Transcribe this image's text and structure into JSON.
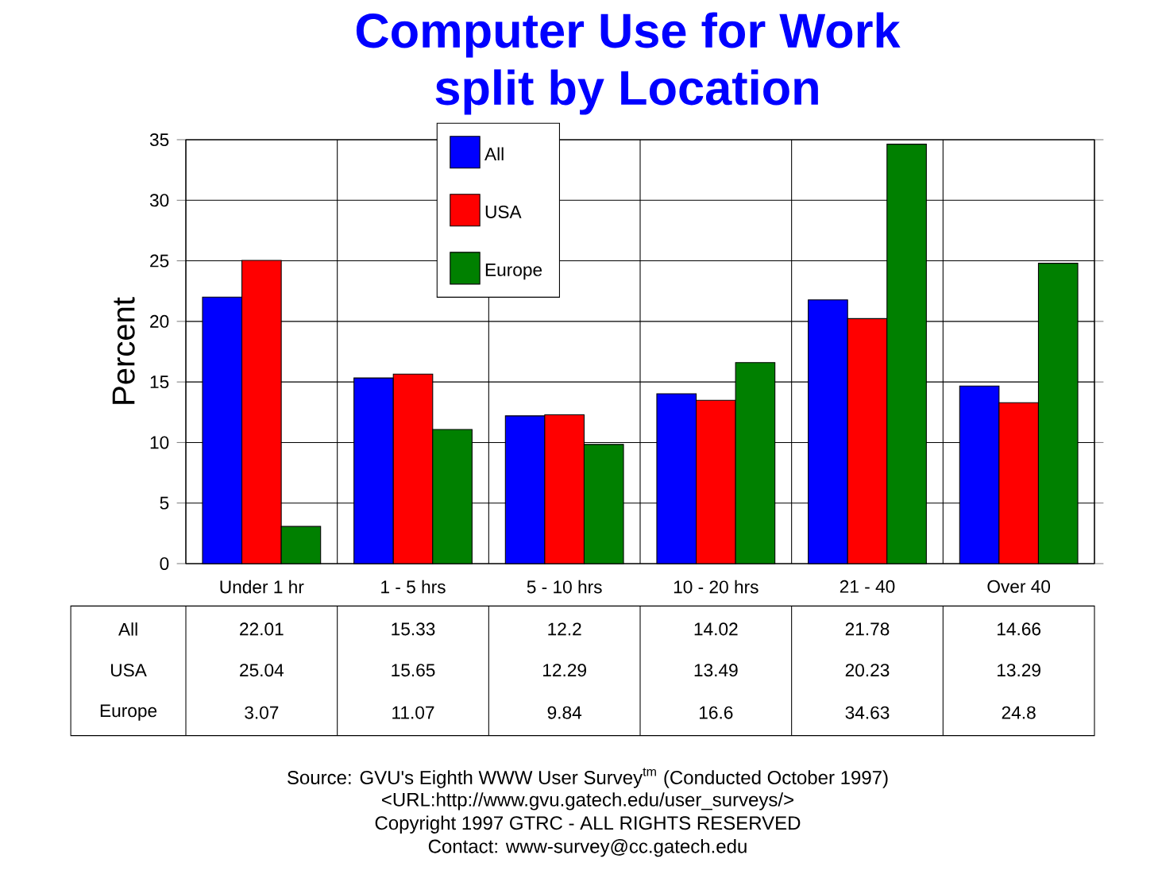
{
  "chart_data": {
    "type": "bar",
    "title": "Computer Use for Work\nsplit by Location",
    "ylabel": "Percent",
    "categories": [
      "Under 1 hr",
      "1 - 5 hrs",
      "5 - 10 hrs",
      "10 - 20 hrs",
      "21 - 40",
      "Over 40"
    ],
    "series": [
      {
        "name": "All",
        "color": "#0000ff",
        "values": [
          22.01,
          15.33,
          12.2,
          14.02,
          21.78,
          14.66
        ]
      },
      {
        "name": "USA",
        "color": "#ff0000",
        "values": [
          25.04,
          15.65,
          12.29,
          13.49,
          20.23,
          13.29
        ]
      },
      {
        "name": "Europe",
        "color": "#008000",
        "values": [
          3.07,
          11.07,
          9.84,
          16.6,
          34.63,
          24.8
        ]
      }
    ],
    "ylim": [
      0,
      35
    ],
    "yticks": [
      0,
      5,
      10,
      15,
      20,
      25,
      30,
      35
    ],
    "grid": true,
    "legend": "top",
    "data_labels": true,
    "annotations": [
      "Source: GVU's Eighth WWW User Survey$^{tm}$ (Conducted October 1997)",
      "<URL:http://www.gvu.gatech.edu/user_surveys/>",
      "Copyright 1997 GTRC - ALL RIGHTS RESERVED",
      "Contact: www-survey@cc.gatech.edu"
    ]
  }
}
